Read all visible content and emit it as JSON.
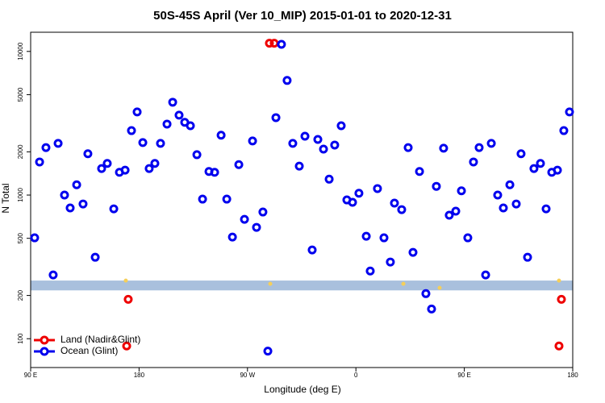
{
  "chart_data": {
    "type": "scatter",
    "title": "50S-45S April (Ver 10_MIP)   2015-01-01 to 2020-12-31",
    "x_label": "Longitude (deg E)",
    "y_label": "N Total",
    "log_y": true,
    "xlim": [
      90,
      540
    ],
    "ylim": [
      63,
      13600
    ],
    "xticks": [
      {
        "value": 90,
        "label": "90 E"
      },
      {
        "value": 180,
        "label": "180"
      },
      {
        "value": 270,
        "label": "90 W"
      },
      {
        "value": 360,
        "label": "0"
      },
      {
        "value": 450,
        "label": "90 E"
      },
      {
        "value": 540,
        "label": "180"
      }
    ],
    "yticks": [
      100,
      200,
      500,
      1000,
      2000,
      5000,
      10000
    ],
    "band": [
      217,
      254
    ],
    "band_color": "#a9c0dd",
    "legend": "bottom-left",
    "series": [
      {
        "name": "Land (Nadir&Glint)",
        "color": "#ee0000",
        "x": [
          288.2,
          292.2,
          169.7,
          171,
          528.6,
          530.6
        ],
        "values": [
          11400,
          11400,
          89,
          188,
          89,
          188
        ]
      },
      {
        "name": "Ocean (Glint)",
        "color": "#0000ee",
        "x": [
          93.3,
          97.4,
          102.7,
          108.7,
          112.8,
          118.1,
          122.8,
          128.2,
          133.5,
          137.5,
          143.6,
          148.9,
          153.6,
          159,
          163.7,
          168.4,
          173.7,
          178.4,
          183.1,
          188.4,
          193.1,
          197.8,
          203.2,
          207.9,
          213.2,
          217.9,
          222.6,
          228,
          232.7,
          238,
          242.7,
          248.1,
          252.8,
          257.5,
          262.8,
          267.5,
          274.2,
          277.5,
          282.8,
          286.9,
          293.6,
          298.2,
          302.9,
          307.6,
          313,
          317.7,
          323.7,
          328.4,
          333.1,
          337.8,
          342.4,
          347.8,
          352.5,
          357.2,
          362.5,
          368.6,
          371.9,
          377.9,
          383.3,
          388.6,
          392,
          398,
          403.4,
          407.4,
          412.8,
          418.1,
          422.8,
          426.8,
          432.8,
          437.5,
          442.9,
          447.6,
          452.9,
          457.6,
          462.3,
          467.7,
          472.4,
          477.7,
          482.4,
          487.8,
          493.1,
          497.1,
          502.5,
          507.8,
          513.2,
          517.9,
          522.6,
          527.3,
          532.6,
          537.3
        ],
        "values": [
          504,
          1700,
          2140,
          278,
          2290,
          1000,
          813,
          1180,
          867,
          1940,
          369,
          1530,
          1660,
          802,
          1440,
          1490,
          2810,
          3790,
          2320,
          1530,
          1660,
          2290,
          3120,
          4430,
          3600,
          3210,
          3040,
          1910,
          937,
          1460,
          1440,
          2610,
          937,
          510,
          1630,
          678,
          2380,
          596,
          762,
          82,
          3460,
          11200,
          6280,
          2290,
          1590,
          2570,
          415,
          2440,
          2090,
          1290,
          2230,
          3040,
          925,
          890,
          1030,
          517,
          296,
          1110,
          504,
          342,
          879,
          792,
          2140,
          399,
          1460,
          206,
          161,
          1150,
          2120,
          724,
          772,
          1070,
          504,
          1700,
          2140,
          278,
          2290,
          1000,
          813,
          1180,
          867,
          1940,
          369,
          1530,
          1660,
          802,
          1440,
          1490,
          2810,
          3790
        ]
      },
      {
        "color": "#f5cf5a",
        "x": [
          169,
          288.9,
          399.4,
          429.5,
          528.6
        ],
        "values": [
          254,
          241,
          241,
          226,
          254
        ]
      }
    ]
  }
}
